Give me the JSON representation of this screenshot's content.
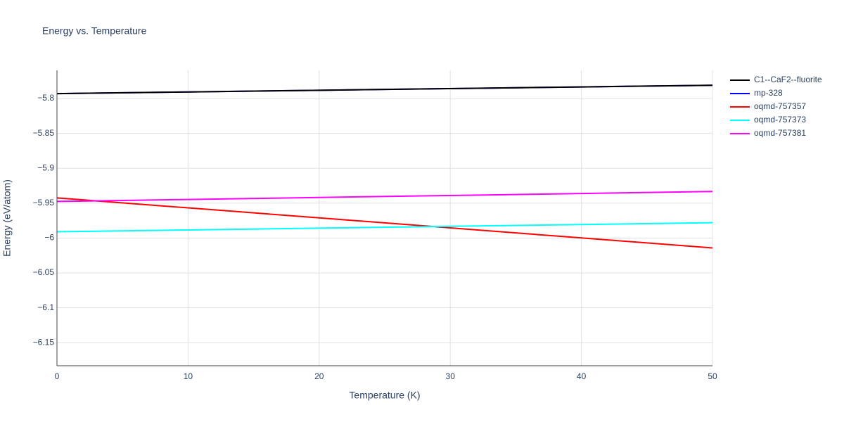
{
  "chart_data": {
    "type": "line",
    "title": "Energy vs. Temperature",
    "x_label": "Temperature (K)",
    "y_label": "Energy (eV/atom)",
    "x": [
      0,
      10,
      20,
      30,
      40,
      50
    ],
    "series": [
      {
        "name": "C1--CaF2--fluorite",
        "color": "#000000",
        "values": [
          -5.793,
          -5.7906,
          -5.7882,
          -5.7858,
          -5.7834,
          -5.781
        ]
      },
      {
        "name": "mp-328",
        "color": "#0000ff",
        "values": [
          -5.793,
          -5.7906,
          -5.7882,
          -5.7858,
          -5.7834,
          -5.781
        ]
      },
      {
        "name": "oqmd-757357",
        "color": "#ff0000",
        "values": [
          -5.9424,
          -5.9567,
          -5.9711,
          -5.9854,
          -5.9998,
          -6.0141
        ]
      },
      {
        "name": "oqmd-757373",
        "color": "#00ffff",
        "values": [
          -5.991,
          -5.9884,
          -5.9858,
          -5.9832,
          -5.9806,
          -5.978
        ]
      },
      {
        "name": "oqmd-757381",
        "color": "#ff00ff",
        "values": [
          -5.9475,
          -5.9447,
          -5.9418,
          -5.939,
          -5.9361,
          -5.9333
        ]
      }
    ],
    "xlim": [
      0,
      50
    ],
    "xticks": [
      0,
      10,
      20,
      30,
      40,
      50
    ],
    "ylim": [
      -6.183,
      -5.7596
    ],
    "yticks": [
      {
        "value": -5.8,
        "label": "−5.8"
      },
      {
        "value": -5.85,
        "label": "−5.85"
      },
      {
        "value": -5.9,
        "label": "−5.9"
      },
      {
        "value": -5.95,
        "label": "−5.95"
      },
      {
        "value": -6,
        "label": "−6"
      },
      {
        "value": -6.05,
        "label": "−6.05"
      },
      {
        "value": -6.1,
        "label": "−6.1"
      },
      {
        "value": -6.15,
        "label": "−6.15"
      }
    ],
    "grid": true,
    "legend": "right"
  }
}
